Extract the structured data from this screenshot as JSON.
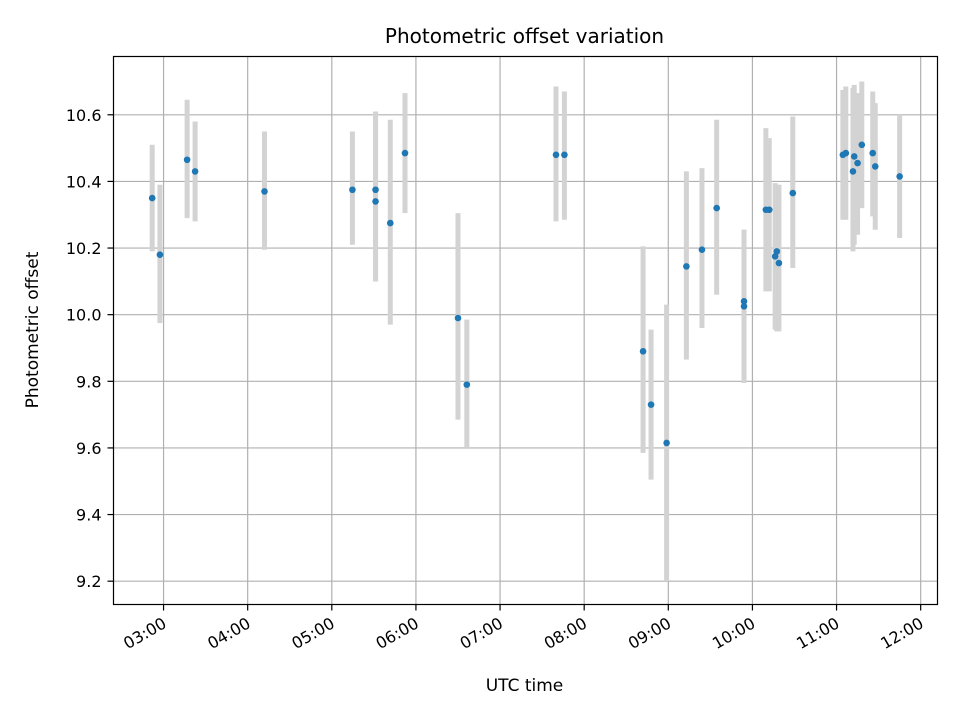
{
  "chart_data": {
    "type": "scatter",
    "title": "Photometric offset variation",
    "xlabel": "UTC time",
    "ylabel": "Photometric offset",
    "x_unit": "UTC hour of day",
    "xlim": [
      2.405,
      12.2
    ],
    "ylim": [
      9.13,
      10.775
    ],
    "grid": true,
    "xticks": [
      3,
      4,
      5,
      6,
      7,
      8,
      9,
      10,
      11,
      12
    ],
    "xtick_labels": [
      "03:00",
      "04:00",
      "05:00",
      "06:00",
      "07:00",
      "08:00",
      "09:00",
      "10:00",
      "11:00",
      "12:00"
    ],
    "yticks": [
      9.2,
      9.4,
      9.6,
      9.8,
      10.0,
      10.2,
      10.4,
      10.6
    ],
    "ytick_labels": [
      "9.2",
      "9.4",
      "9.6",
      "9.8",
      "10.0",
      "10.2",
      "10.4",
      "10.6"
    ],
    "colors": {
      "point": "#1f77b4",
      "errorbar": "#d3d3d3",
      "grid": "#b0b0b0"
    },
    "points": [
      {
        "x": 2.865,
        "y": 10.35,
        "lo": 10.19,
        "hi": 10.51
      },
      {
        "x": 2.957,
        "y": 10.18,
        "lo": 9.975,
        "hi": 10.39
      },
      {
        "x": 3.28,
        "y": 10.465,
        "lo": 10.29,
        "hi": 10.645
      },
      {
        "x": 3.375,
        "y": 10.43,
        "lo": 10.28,
        "hi": 10.58
      },
      {
        "x": 4.2,
        "y": 10.37,
        "lo": 10.195,
        "hi": 10.55
      },
      {
        "x": 5.245,
        "y": 10.375,
        "lo": 10.21,
        "hi": 10.55
      },
      {
        "x": 5.52,
        "y": 10.375,
        "lo": 10.1,
        "hi": 10.61
      },
      {
        "x": 5.52,
        "y": 10.34,
        "lo": 10.1,
        "hi": 10.61
      },
      {
        "x": 5.695,
        "y": 10.275,
        "lo": 9.97,
        "hi": 10.585
      },
      {
        "x": 5.87,
        "y": 10.485,
        "lo": 10.305,
        "hi": 10.665
      },
      {
        "x": 6.5,
        "y": 9.99,
        "lo": 9.685,
        "hi": 10.305
      },
      {
        "x": 6.605,
        "y": 9.79,
        "lo": 9.6,
        "hi": 9.985
      },
      {
        "x": 7.665,
        "y": 10.48,
        "lo": 10.28,
        "hi": 10.685
      },
      {
        "x": 7.765,
        "y": 10.48,
        "lo": 10.285,
        "hi": 10.67
      },
      {
        "x": 8.7,
        "y": 9.89,
        "lo": 9.585,
        "hi": 10.205
      },
      {
        "x": 8.795,
        "y": 9.73,
        "lo": 9.505,
        "hi": 9.955
      },
      {
        "x": 8.98,
        "y": 9.615,
        "lo": 9.2,
        "hi": 10.03
      },
      {
        "x": 9.215,
        "y": 10.145,
        "lo": 9.865,
        "hi": 10.43
      },
      {
        "x": 9.4,
        "y": 10.195,
        "lo": 9.96,
        "hi": 10.44
      },
      {
        "x": 9.575,
        "y": 10.32,
        "lo": 10.06,
        "hi": 10.585
      },
      {
        "x": 9.9,
        "y": 10.04,
        "lo": 9.795,
        "hi": 10.255
      },
      {
        "x": 9.9,
        "y": 10.025,
        "lo": 9.795,
        "hi": 10.255
      },
      {
        "x": 10.16,
        "y": 10.315,
        "lo": 10.07,
        "hi": 10.56
      },
      {
        "x": 10.2,
        "y": 10.315,
        "lo": 10.07,
        "hi": 10.53
      },
      {
        "x": 10.27,
        "y": 10.175,
        "lo": 9.955,
        "hi": 10.395
      },
      {
        "x": 10.29,
        "y": 10.19,
        "lo": 9.95,
        "hi": 10.39
      },
      {
        "x": 10.315,
        "y": 10.155,
        "lo": 9.95,
        "hi": 10.39
      },
      {
        "x": 10.48,
        "y": 10.365,
        "lo": 10.14,
        "hi": 10.595
      },
      {
        "x": 11.075,
        "y": 10.48,
        "lo": 10.285,
        "hi": 10.675
      },
      {
        "x": 11.11,
        "y": 10.485,
        "lo": 10.285,
        "hi": 10.685
      },
      {
        "x": 11.195,
        "y": 10.43,
        "lo": 10.19,
        "hi": 10.68
      },
      {
        "x": 11.21,
        "y": 10.475,
        "lo": 10.21,
        "hi": 10.69
      },
      {
        "x": 11.25,
        "y": 10.455,
        "lo": 10.24,
        "hi": 10.665
      },
      {
        "x": 11.3,
        "y": 10.51,
        "lo": 10.32,
        "hi": 10.7
      },
      {
        "x": 11.43,
        "y": 10.485,
        "lo": 10.295,
        "hi": 10.67
      },
      {
        "x": 11.46,
        "y": 10.445,
        "lo": 10.255,
        "hi": 10.635
      },
      {
        "x": 11.75,
        "y": 10.415,
        "lo": 10.23,
        "hi": 10.6
      }
    ]
  }
}
